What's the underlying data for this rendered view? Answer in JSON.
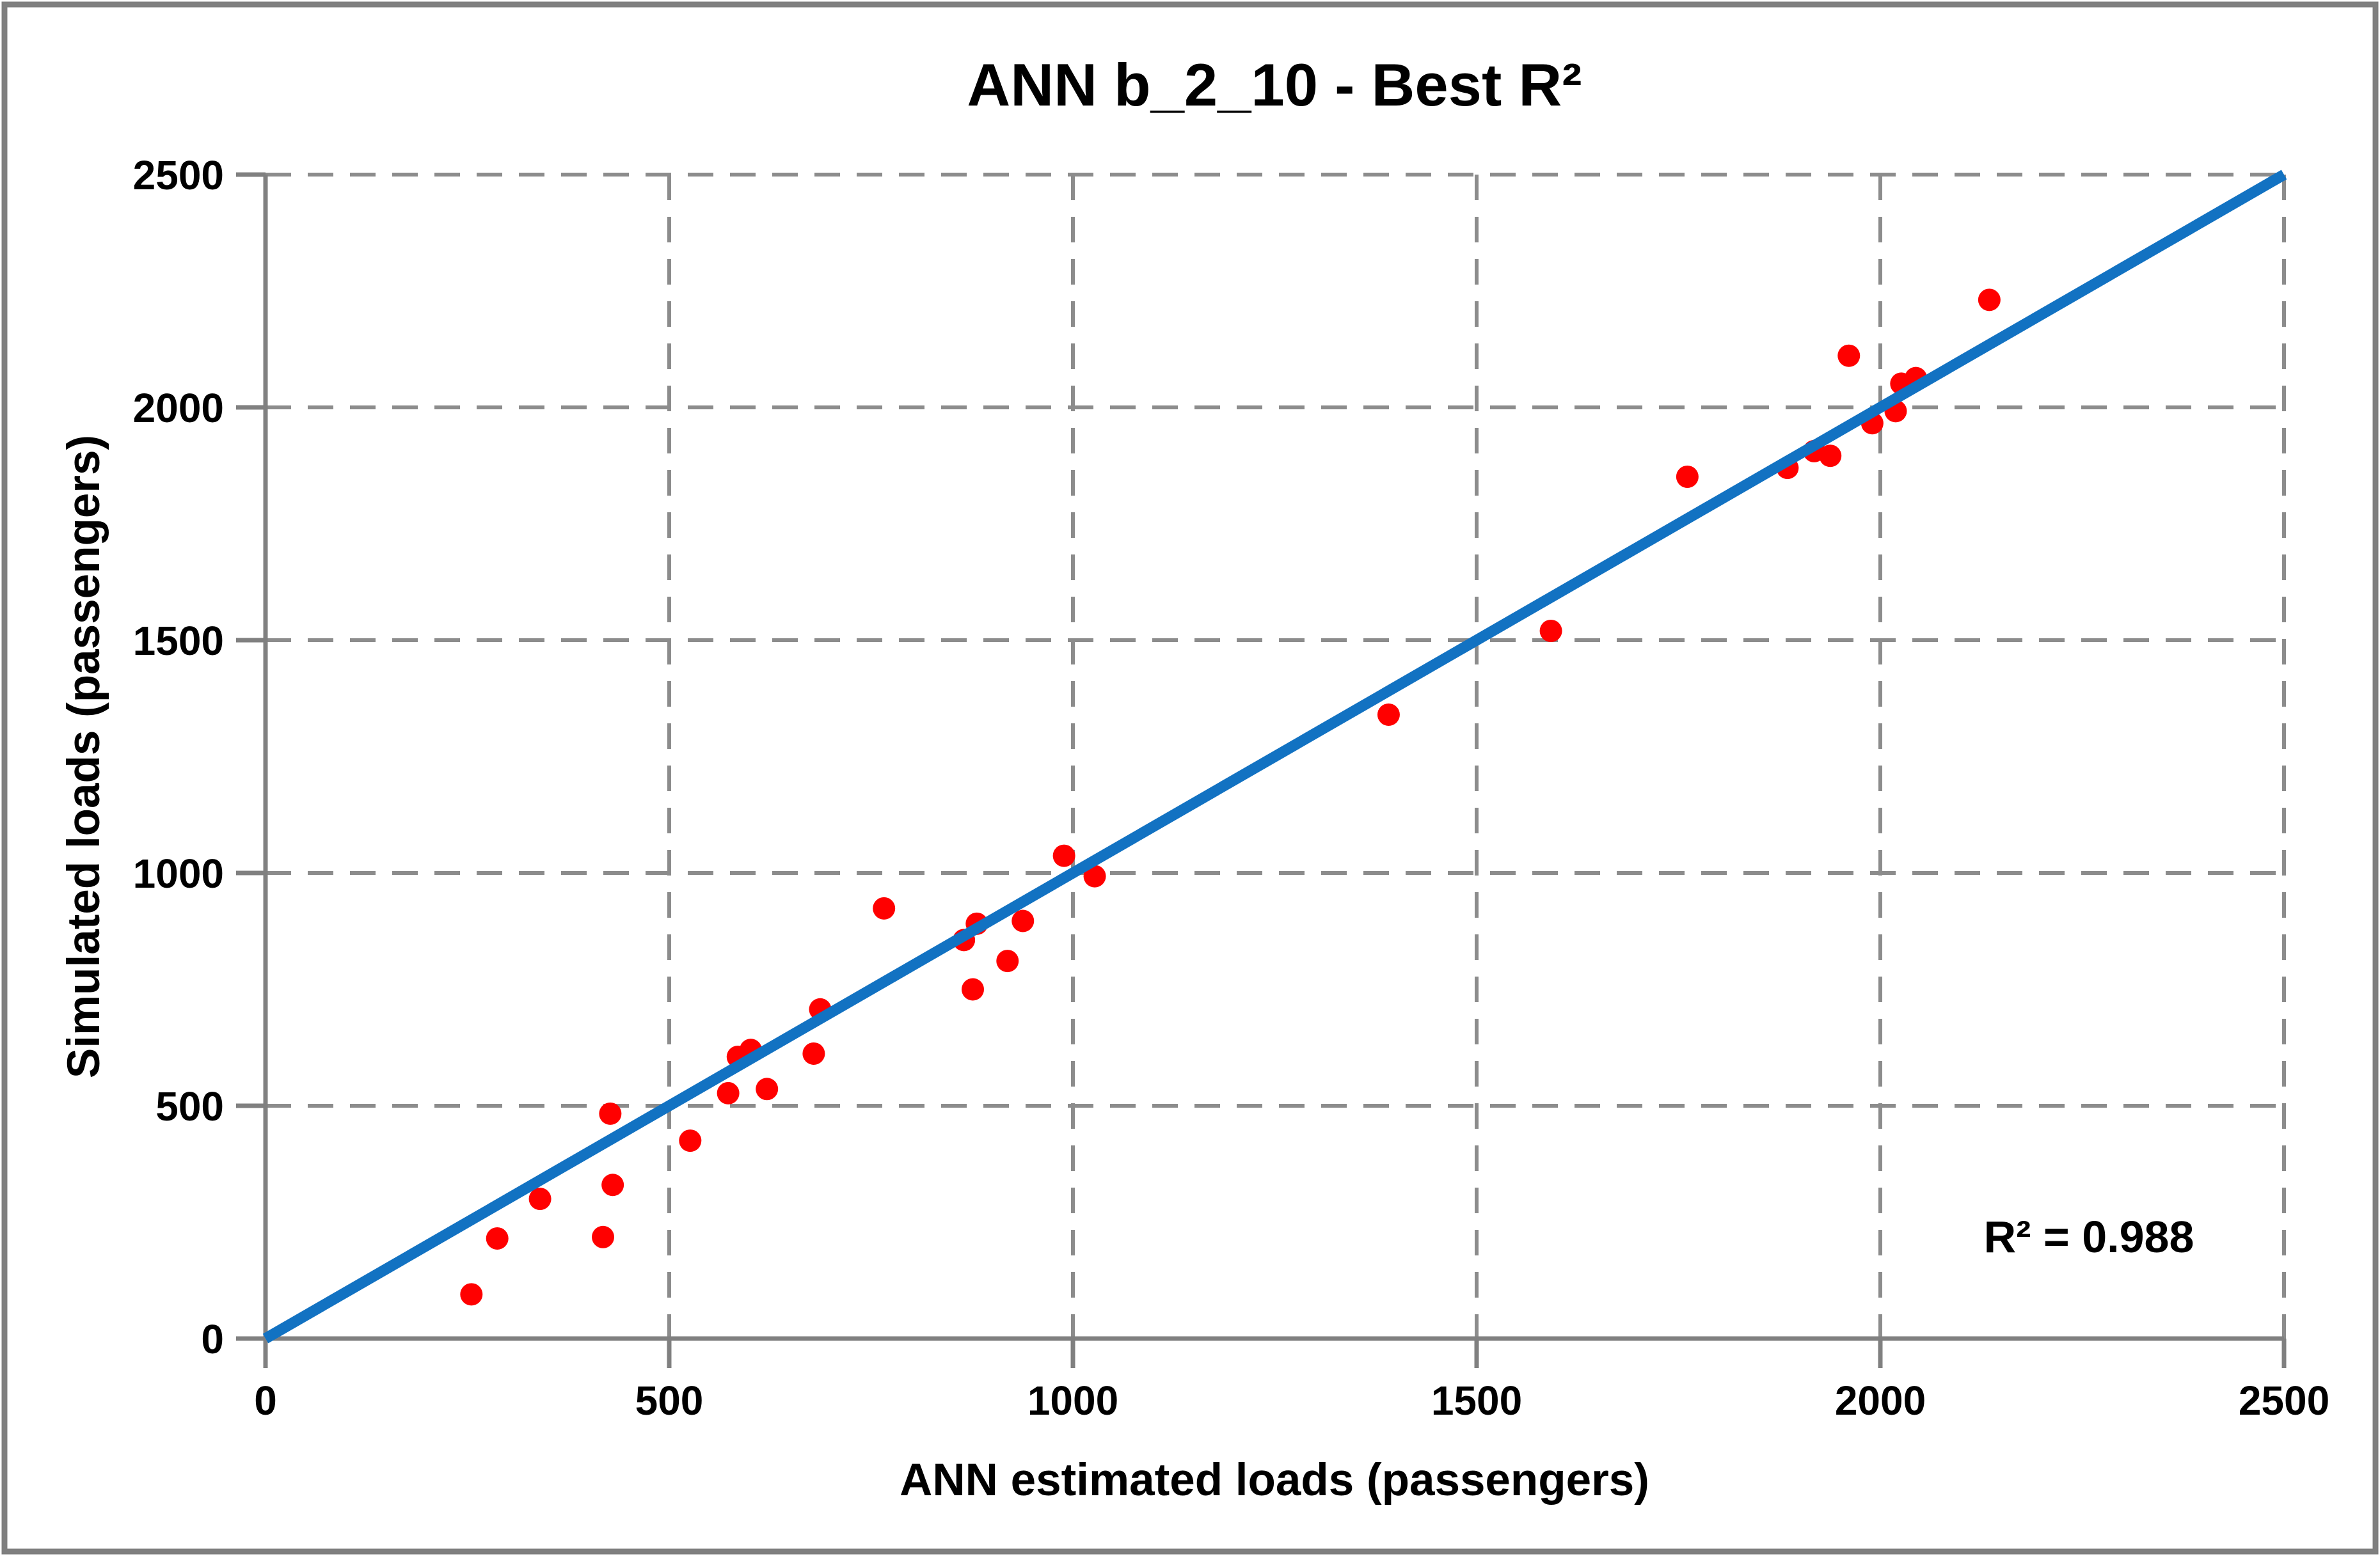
{
  "chart_data": {
    "type": "scatter",
    "title": "ANN b_2_10 - Best R²",
    "xlabel": "ANN estimated loads (passengers)",
    "ylabel": "Simulated loads (passengers)",
    "annotation": "R² = 0.988",
    "xlim": [
      0,
      2500
    ],
    "ylim": [
      0,
      2500
    ],
    "x_ticks": [
      0,
      500,
      1000,
      1500,
      2000,
      2500
    ],
    "y_ticks": [
      0,
      500,
      1000,
      1500,
      2000,
      2500
    ],
    "grid": "major-both-dashed",
    "legend": "none",
    "colors": {
      "points": "#FF0000",
      "trend_line": "#1272C2",
      "gridline": "#8C8C8C",
      "axis": "#808080",
      "frame": "#7F7F7F",
      "text": "#000000",
      "background": "#FFFFFF"
    },
    "series": [
      {
        "name": "scatter-points",
        "type": "scatter",
        "points": [
          [
            255,
            95
          ],
          [
            287,
            215
          ],
          [
            340,
            300
          ],
          [
            418,
            218
          ],
          [
            430,
            330
          ],
          [
            427,
            483
          ],
          [
            526,
            425
          ],
          [
            573,
            527
          ],
          [
            585,
            605
          ],
          [
            601,
            620
          ],
          [
            621,
            536
          ],
          [
            679,
            612
          ],
          [
            687,
            707
          ],
          [
            766,
            924
          ],
          [
            865,
            856
          ],
          [
            881,
            891
          ],
          [
            876,
            750
          ],
          [
            919,
            811
          ],
          [
            938,
            897
          ],
          [
            989,
            1037
          ],
          [
            1027,
            993
          ],
          [
            1391,
            1340
          ],
          [
            1592,
            1520
          ],
          [
            1761,
            1851
          ],
          [
            1885,
            1870
          ],
          [
            1918,
            1906
          ],
          [
            1938,
            1896
          ],
          [
            1961,
            2111
          ],
          [
            1990,
            1966
          ],
          [
            2019,
            1992
          ],
          [
            2026,
            2051
          ],
          [
            2044,
            2063
          ],
          [
            2135,
            2231
          ]
        ]
      },
      {
        "name": "identity-trend-line",
        "type": "line",
        "points": [
          [
            0,
            0
          ],
          [
            2500,
            2500
          ]
        ]
      }
    ]
  }
}
